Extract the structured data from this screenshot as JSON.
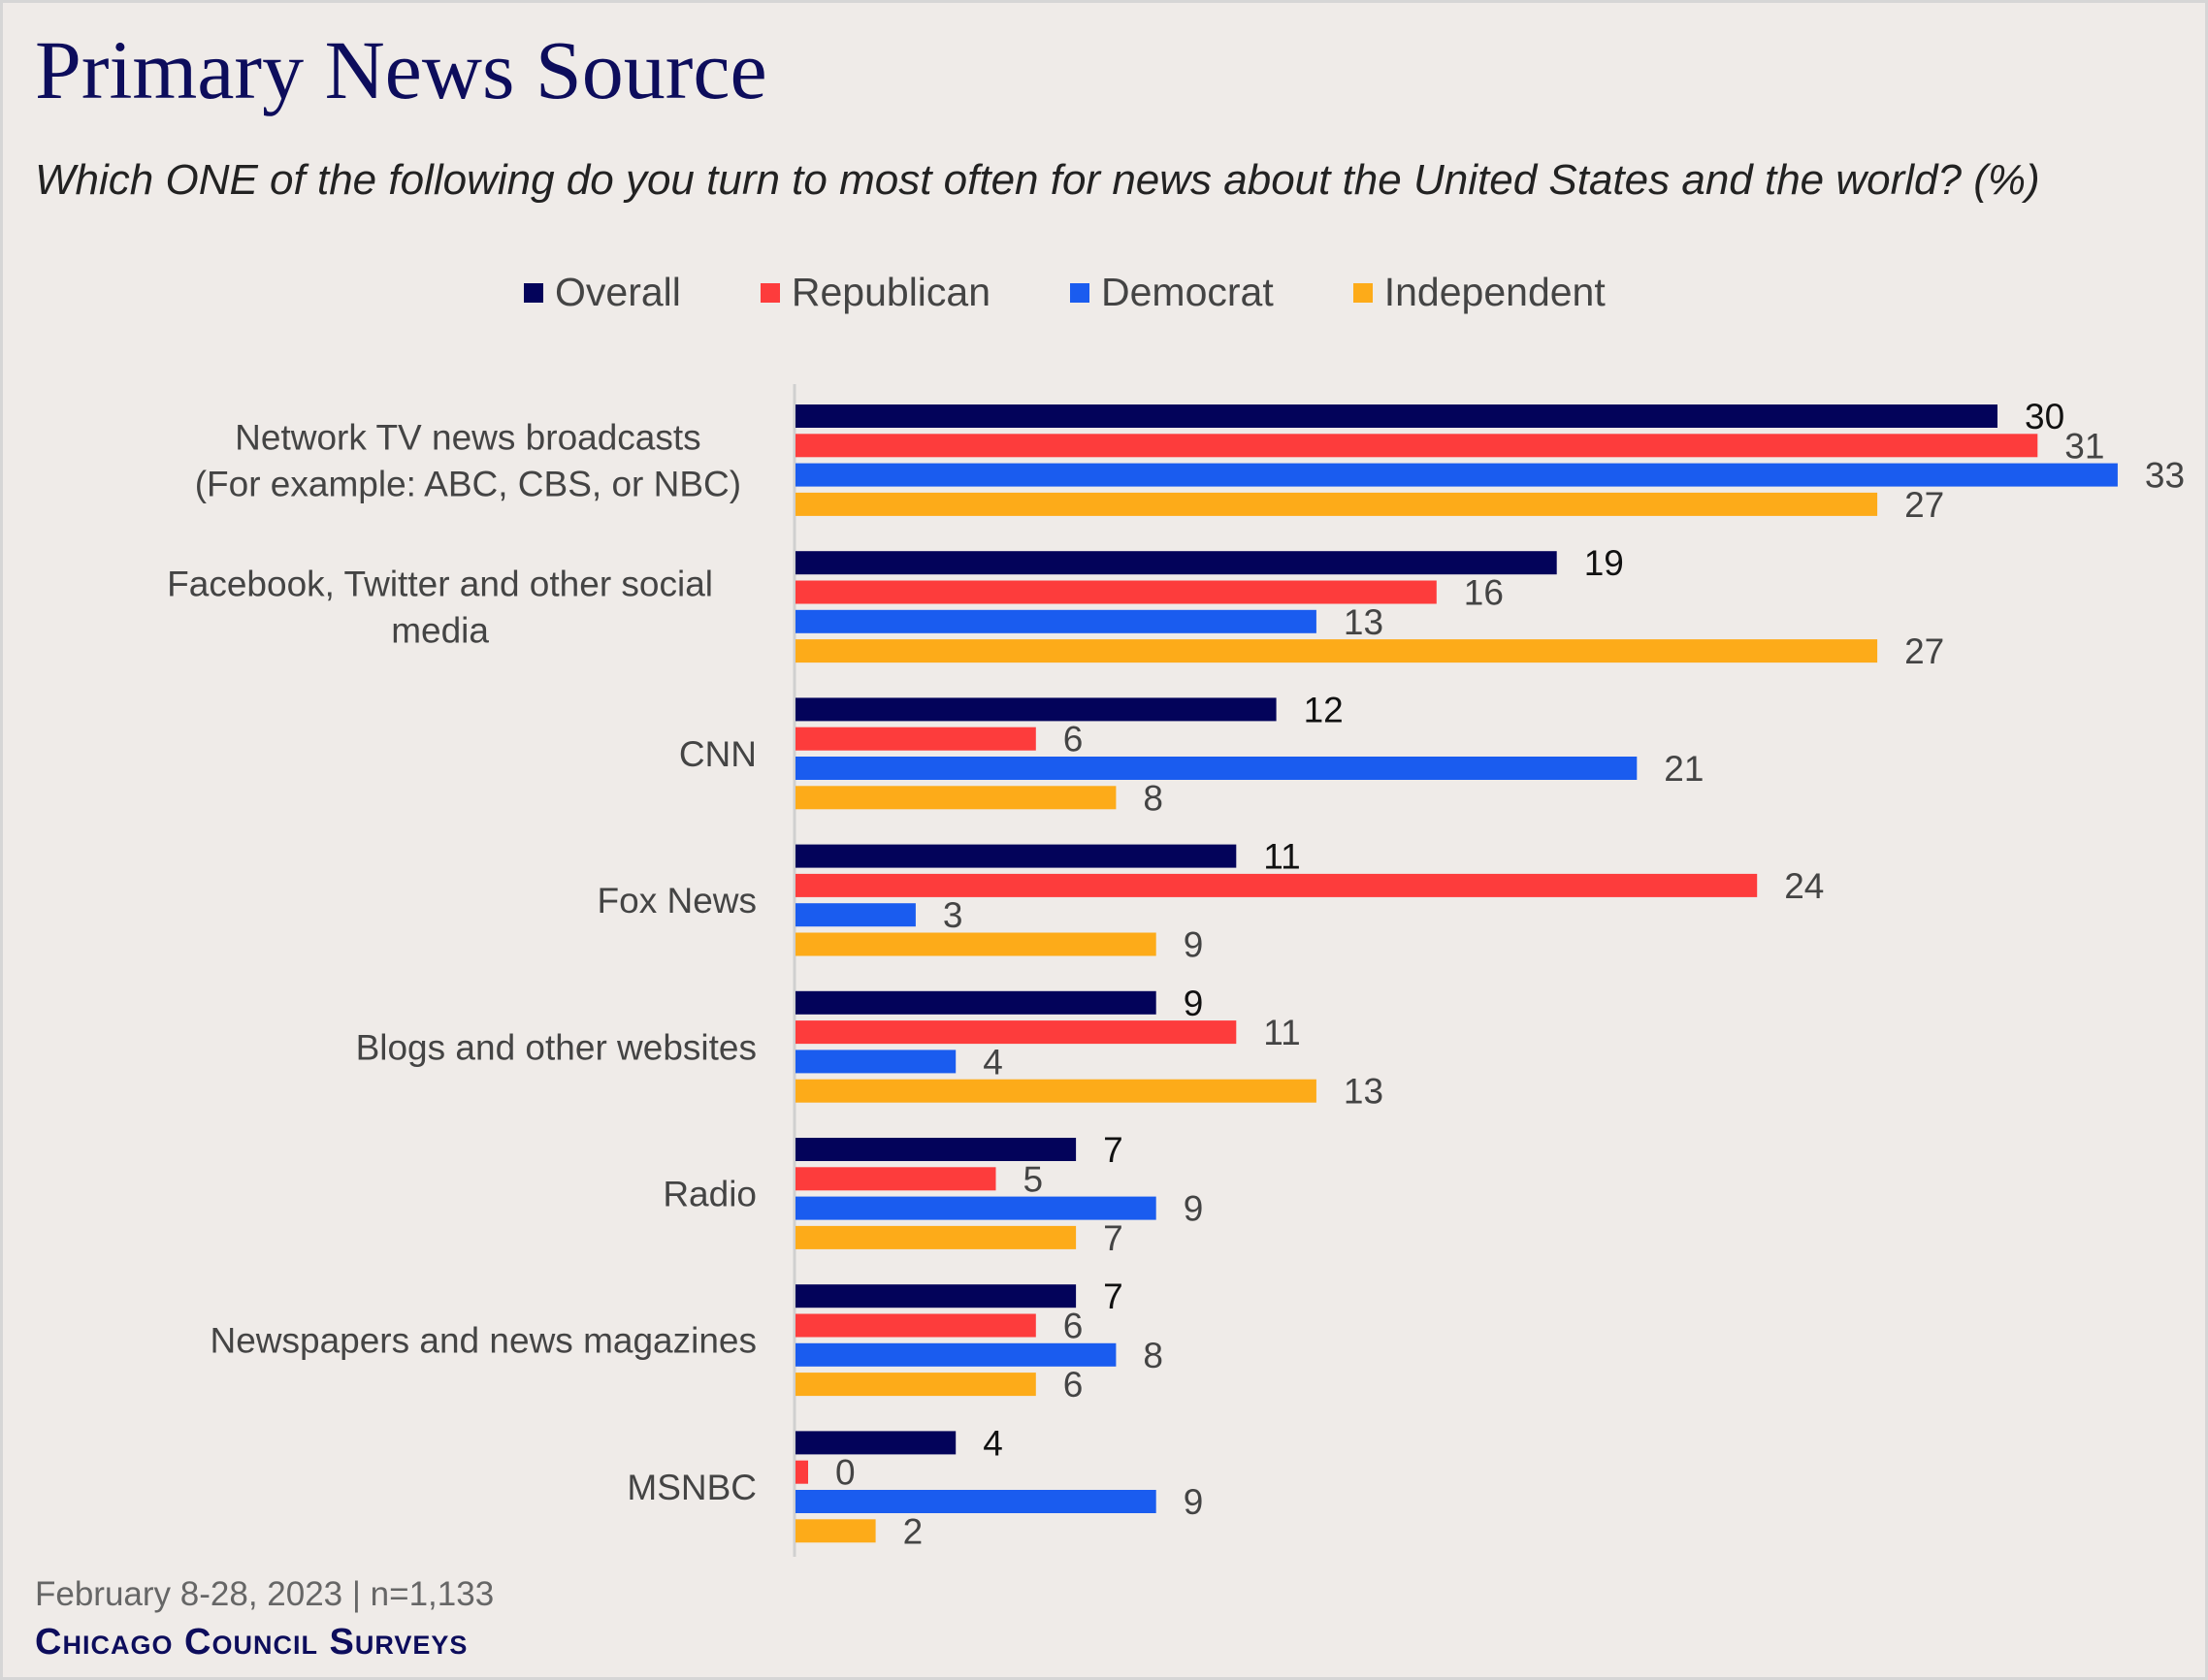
{
  "title": "Primary News Source",
  "subtitle": "Which ONE of the following do you turn to most often for news about the United States and the world? (%)",
  "footer": {
    "note": "February 8-28, 2023 | n=1,133",
    "brand": "Chicago Council Surveys"
  },
  "chart_data": {
    "type": "bar",
    "orientation": "horizontal",
    "title": "Primary News Source",
    "legend_position": "top",
    "grid": false,
    "xlim": [
      0,
      35
    ],
    "categories": [
      [
        "Network TV news broadcasts",
        "(For example: ABC, CBS, or NBC)"
      ],
      [
        "Facebook, Twitter and other social",
        "media"
      ],
      [
        "CNN"
      ],
      [
        "Fox News"
      ],
      [
        "Blogs and other websites"
      ],
      [
        "Radio"
      ],
      [
        "Newspapers and news magazines"
      ],
      [
        "MSNBC"
      ]
    ],
    "series": [
      {
        "name": "Overall",
        "color": "#03035a",
        "label_color": "#111111",
        "values": [
          30,
          19,
          12,
          11,
          9,
          7,
          7,
          4
        ]
      },
      {
        "name": "Republican",
        "color": "#fd3c3c",
        "label_color": "#444444",
        "values": [
          31,
          16,
          6,
          24,
          11,
          5,
          6,
          0
        ]
      },
      {
        "name": "Democrat",
        "color": "#1a5cef",
        "label_color": "#444444",
        "values": [
          33,
          13,
          21,
          3,
          4,
          9,
          8,
          9
        ]
      },
      {
        "name": "Independent",
        "color": "#fdab19",
        "label_color": "#444444",
        "values": [
          27,
          27,
          8,
          9,
          13,
          7,
          6,
          2
        ]
      }
    ]
  }
}
